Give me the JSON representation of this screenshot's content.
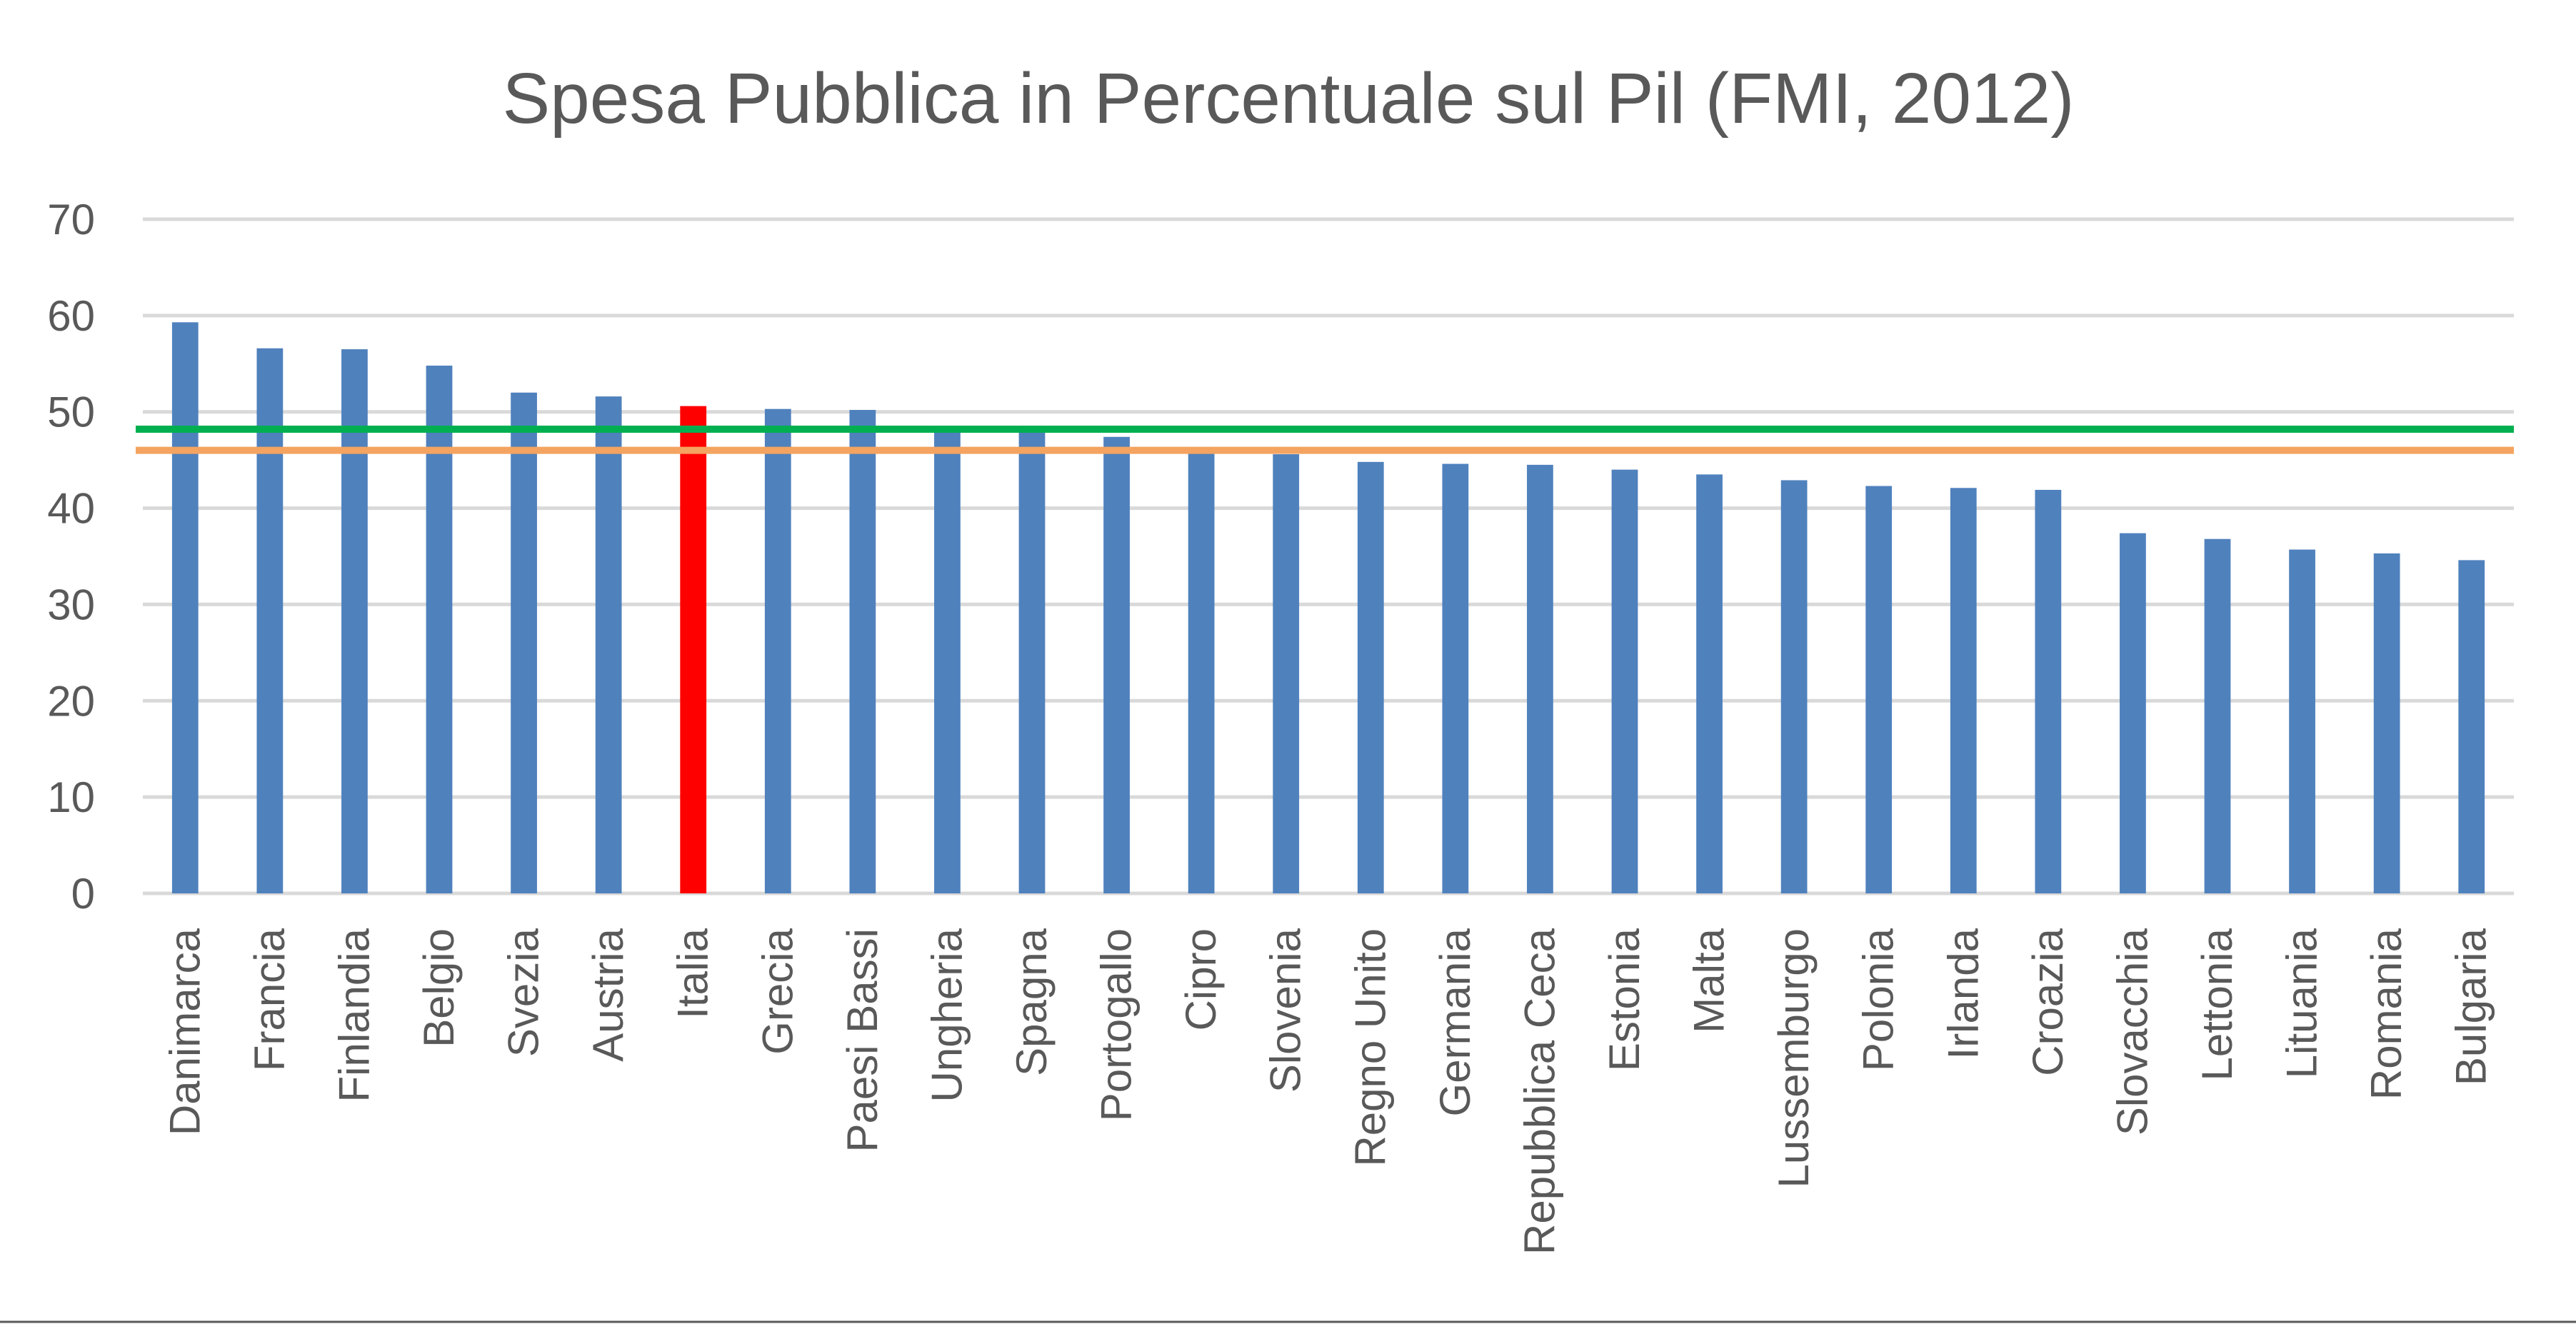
{
  "chart_data": {
    "type": "bar",
    "title": "Spesa Pubblica in Percentuale sul Pil (FMI, 2012)",
    "xlabel": "",
    "ylabel": "",
    "ylim": [
      0,
      70
    ],
    "yticks": [
      "0",
      "10",
      "20",
      "30",
      "40",
      "50",
      "60",
      "70"
    ],
    "grid": true,
    "legend": "none",
    "categories": [
      "Danimarca",
      "Francia",
      "Finlandia",
      "Belgio",
      "Svezia",
      "Austria",
      "Italia",
      "Grecia",
      "Paesi Bassi",
      "Ungheria",
      "Spagna",
      "Portogallo",
      "Cipro",
      "Slovenia",
      "Regno Unito",
      "Germania",
      "Repubblica Ceca",
      "Estonia",
      "Malta",
      "Lussemburgo",
      "Polonia",
      "Irlanda",
      "Croazia",
      "Slovacchia",
      "Lettonia",
      "Lituania",
      "Romania",
      "Bulgaria"
    ],
    "values": [
      59.3,
      56.6,
      56.5,
      54.8,
      52.0,
      51.6,
      50.6,
      50.3,
      50.2,
      48.3,
      48.2,
      47.4,
      46.2,
      45.6,
      44.8,
      44.6,
      44.5,
      44.0,
      43.5,
      42.9,
      42.3,
      42.1,
      41.9,
      37.4,
      36.8,
      35.7,
      35.3,
      34.6
    ],
    "highlight_category": "Italia",
    "reference_lines": [
      {
        "value": 48.2,
        "color": "#00b050"
      },
      {
        "value": 46.0,
        "color": "#f4a460"
      }
    ],
    "colors": {
      "bar": "#4f81bd",
      "highlight": "#ff0000",
      "reference_green": "#00b050",
      "reference_orange": "#f4a460",
      "text": "#595959",
      "grid": "#d9d9d9"
    }
  }
}
